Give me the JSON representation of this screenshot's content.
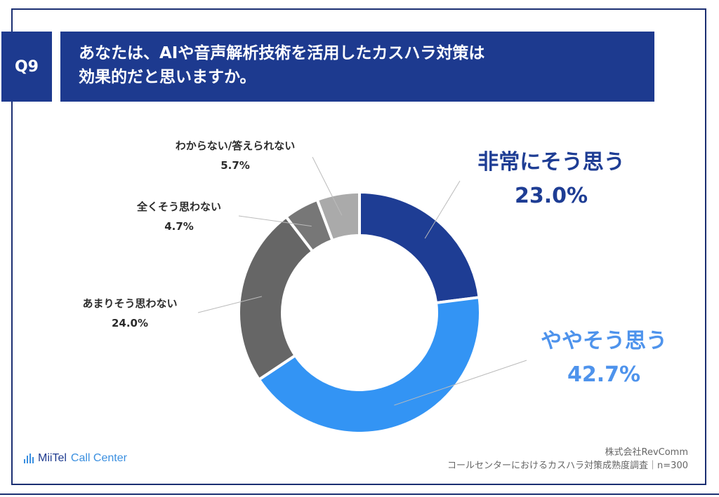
{
  "header": {
    "question_no": "Q9",
    "title_line1": "あなたは、AIや音声解析技術を活用したカスハラ対策は",
    "title_line2": "効果的だと思いますか。"
  },
  "chart_data": {
    "type": "pie",
    "variant": "donut",
    "categories": [
      "非常にそう思う",
      "ややそう思う",
      "あまりそう思わない",
      "全くそう思わない",
      "わからない/答えられない"
    ],
    "values": [
      23.0,
      42.7,
      24.0,
      4.7,
      5.7
    ],
    "labels": [
      "23.0%",
      "42.7%",
      "24.0%",
      "4.7%",
      "5.7%"
    ],
    "colors": [
      "#1e3d94",
      "#3394f4",
      "#666666",
      "#777777",
      "#aaaaaa"
    ],
    "legend": "none",
    "start": "top, clockwise"
  },
  "footer": {
    "logo_brand": "MiiTel",
    "logo_sub": "Call Center",
    "source_line1": "株式会社RevComm",
    "source_line2": "コールセンターにおけるカスハラ対策成熟度調査｜n=300"
  }
}
